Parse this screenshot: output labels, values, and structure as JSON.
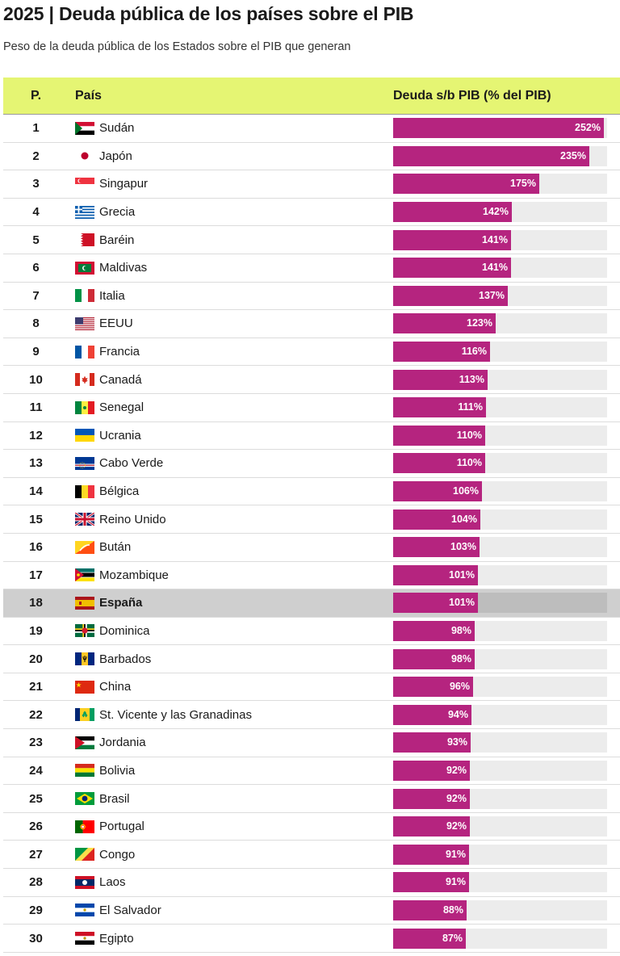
{
  "title": "2025 | Deuda pública de los países sobre el PIB",
  "subtitle": "Peso de la deuda pública de los Estados sobre el PIB que generan",
  "headers": {
    "rank": "P.",
    "country": "País",
    "value": "Deuda s/b PIB (% del PIB)"
  },
  "colors": {
    "bar": "#b5247f",
    "header_bg": "#e5f573",
    "track": "#ececec",
    "highlight_row": "#cfcfcf"
  },
  "chart_data": {
    "type": "bar",
    "title": "2025 | Deuda pública de los países sobre el PIB",
    "subtitle": "Peso de la deuda pública de los Estados sobre el PIB que generan",
    "xlim": [
      0,
      256
    ],
    "highlight": "España",
    "rows": [
      {
        "rank": "1",
        "country": "Sudán",
        "value": 252,
        "label": "252%",
        "flag": "sudan-flag-icon"
      },
      {
        "rank": "2",
        "country": "Japón",
        "value": 235,
        "label": "235%",
        "flag": "japan-flag-icon"
      },
      {
        "rank": "3",
        "country": "Singapur",
        "value": 175,
        "label": "175%",
        "flag": "singapore-flag-icon"
      },
      {
        "rank": "4",
        "country": "Grecia",
        "value": 142,
        "label": "142%",
        "flag": "greece-flag-icon"
      },
      {
        "rank": "5",
        "country": "Baréin",
        "value": 141,
        "label": "141%",
        "flag": "bahrain-flag-icon"
      },
      {
        "rank": "6",
        "country": "Maldivas",
        "value": 141,
        "label": "141%",
        "flag": "maldives-flag-icon"
      },
      {
        "rank": "7",
        "country": "Italia",
        "value": 137,
        "label": "137%",
        "flag": "italy-flag-icon"
      },
      {
        "rank": "8",
        "country": "EEUU",
        "value": 123,
        "label": "123%",
        "flag": "usa-flag-icon"
      },
      {
        "rank": "9",
        "country": "Francia",
        "value": 116,
        "label": "116%",
        "flag": "france-flag-icon"
      },
      {
        "rank": "10",
        "country": "Canadá",
        "value": 113,
        "label": "113%",
        "flag": "canada-flag-icon"
      },
      {
        "rank": "11",
        "country": "Senegal",
        "value": 111,
        "label": "111%",
        "flag": "senegal-flag-icon"
      },
      {
        "rank": "12",
        "country": "Ucrania",
        "value": 110,
        "label": "110%",
        "flag": "ukraine-flag-icon"
      },
      {
        "rank": "13",
        "country": "Cabo Verde",
        "value": 110,
        "label": "110%",
        "flag": "cape-verde-flag-icon"
      },
      {
        "rank": "14",
        "country": "Bélgica",
        "value": 106,
        "label": "106%",
        "flag": "belgium-flag-icon"
      },
      {
        "rank": "15",
        "country": "Reino Unido",
        "value": 104,
        "label": "104%",
        "flag": "uk-flag-icon"
      },
      {
        "rank": "16",
        "country": "Bután",
        "value": 103,
        "label": "103%",
        "flag": "bhutan-flag-icon"
      },
      {
        "rank": "17",
        "country": "Mozambique",
        "value": 101,
        "label": "101%",
        "flag": "mozambique-flag-icon"
      },
      {
        "rank": "18",
        "country": "España",
        "value": 101,
        "label": "101%",
        "flag": "spain-flag-icon"
      },
      {
        "rank": "19",
        "country": "Dominica",
        "value": 98,
        "label": "98%",
        "flag": "dominica-flag-icon"
      },
      {
        "rank": "20",
        "country": "Barbados",
        "value": 98,
        "label": "98%",
        "flag": "barbados-flag-icon"
      },
      {
        "rank": "21",
        "country": "China",
        "value": 96,
        "label": "96%",
        "flag": "china-flag-icon"
      },
      {
        "rank": "22",
        "country": "St. Vicente y las Granadinas",
        "value": 94,
        "label": "94%",
        "flag": "st-vincent-flag-icon"
      },
      {
        "rank": "23",
        "country": "Jordania",
        "value": 93,
        "label": "93%",
        "flag": "jordan-flag-icon"
      },
      {
        "rank": "24",
        "country": "Bolivia",
        "value": 92,
        "label": "92%",
        "flag": "bolivia-flag-icon"
      },
      {
        "rank": "25",
        "country": "Brasil",
        "value": 92,
        "label": "92%",
        "flag": "brazil-flag-icon"
      },
      {
        "rank": "26",
        "country": "Portugal",
        "value": 92,
        "label": "92%",
        "flag": "portugal-flag-icon"
      },
      {
        "rank": "27",
        "country": "Congo",
        "value": 91,
        "label": "91%",
        "flag": "congo-flag-icon"
      },
      {
        "rank": "28",
        "country": "Laos",
        "value": 91,
        "label": "91%",
        "flag": "laos-flag-icon"
      },
      {
        "rank": "29",
        "country": "El Salvador",
        "value": 88,
        "label": "88%",
        "flag": "el-salvador-flag-icon"
      },
      {
        "rank": "30",
        "country": "Egipto",
        "value": 87,
        "label": "87%",
        "flag": "egypt-flag-icon"
      }
    ]
  }
}
